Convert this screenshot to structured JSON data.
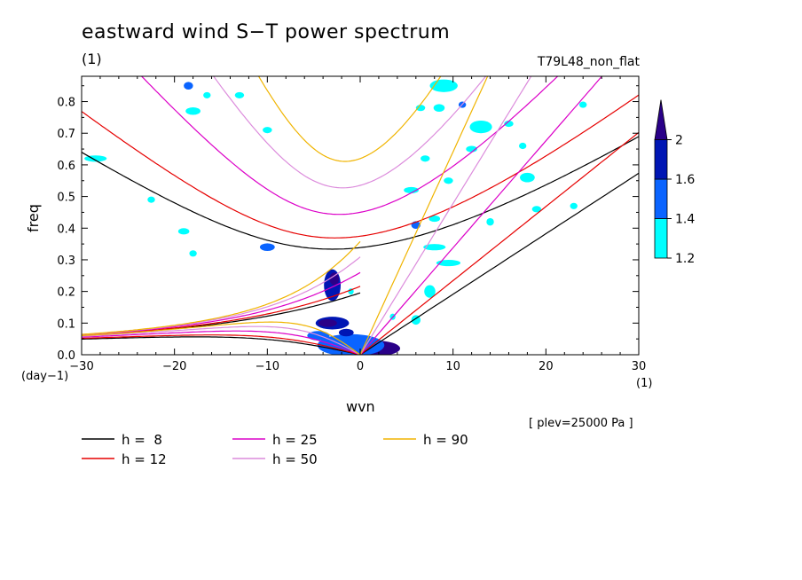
{
  "chart_data": {
    "type": "heatmap",
    "title": "eastward wind S−T power spectrum",
    "subtitle": "(1)",
    "experiment": "T79L48_non_flat",
    "xlabel": "wvn",
    "ylabel": "freq",
    "x_unit": "(1)",
    "y_unit": "(day−1)",
    "level_note": "[ plev=25000 Pa ]",
    "xlim": [
      -30,
      30
    ],
    "ylim": [
      0,
      0.88
    ],
    "x_ticks": [
      -30,
      -20,
      -10,
      0,
      10,
      20,
      30
    ],
    "x_tick_labels": [
      "−30",
      "−20",
      "−10",
      "0",
      "10",
      "20",
      "30"
    ],
    "y_ticks": [
      0,
      0.1,
      0.2,
      0.3,
      0.4,
      0.5,
      0.6,
      0.7,
      0.8
    ],
    "y_tick_labels": [
      "0.0",
      "0.1",
      "0.2",
      "0.3",
      "0.4",
      "0.5",
      "0.6",
      "0.7",
      "0.8"
    ],
    "colorbar": {
      "levels": [
        1.2,
        1.4,
        1.6,
        2
      ],
      "level_labels": [
        "1.2",
        "1.4",
        "1.6",
        "2"
      ],
      "colors": [
        "#00ffff",
        "#0a64ff",
        "#0016b4",
        "#2a0088"
      ]
    },
    "dispersion_curves": [
      {
        "name": "h =  8",
        "h": 8,
        "color": "#000000"
      },
      {
        "name": "h = 12",
        "h": 12,
        "color": "#e60000"
      },
      {
        "name": "h = 25",
        "h": 25,
        "color": "#dc00c8"
      },
      {
        "name": "h = 50",
        "h": 50,
        "color": "#dc8cdc"
      },
      {
        "name": "h = 90",
        "h": 90,
        "color": "#f0b400"
      }
    ],
    "power_regions": [
      {
        "k": 1.5,
        "f": 0.02,
        "rk": 2.8,
        "rf": 0.025,
        "level": 3
      },
      {
        "k": -1.0,
        "f": 0.03,
        "rk": 3.6,
        "rf": 0.035,
        "level": 1
      },
      {
        "k": -3.0,
        "f": 0.1,
        "rk": 1.8,
        "rf": 0.02,
        "level": 2
      },
      {
        "k": -3.5,
        "f": 0.1,
        "rk": 1.0,
        "rf": 0.012,
        "level": 3
      },
      {
        "k": -3.0,
        "f": 0.22,
        "rk": 0.9,
        "rf": 0.05,
        "level": 2
      },
      {
        "k": -2.8,
        "f": 0.24,
        "rk": 0.5,
        "rf": 0.02,
        "level": 3
      },
      {
        "k": -4.5,
        "f": 0.06,
        "rk": 1.2,
        "rf": 0.015,
        "level": 1
      },
      {
        "k": -1.5,
        "f": 0.07,
        "rk": 0.8,
        "rf": 0.012,
        "level": 2
      },
      {
        "k": 6.0,
        "f": 0.11,
        "rk": 0.5,
        "rf": 0.015,
        "level": 0
      },
      {
        "k": 6.0,
        "f": 0.41,
        "rk": 0.5,
        "rf": 0.012,
        "level": 1
      },
      {
        "k": 8.0,
        "f": 0.43,
        "rk": 0.6,
        "rf": 0.01,
        "level": 0
      },
      {
        "k": 7.5,
        "f": 0.2,
        "rk": 0.6,
        "rf": 0.02,
        "level": 0
      },
      {
        "k": 8.0,
        "f": 0.34,
        "rk": 1.2,
        "rf": 0.01,
        "level": 0
      },
      {
        "k": 9.5,
        "f": 0.29,
        "rk": 1.3,
        "rf": 0.01,
        "level": 0
      },
      {
        "k": 13.0,
        "f": 0.72,
        "rk": 1.2,
        "rf": 0.02,
        "level": 0
      },
      {
        "k": 12.0,
        "f": 0.65,
        "rk": 0.6,
        "rf": 0.01,
        "level": 0
      },
      {
        "k": 8.5,
        "f": 0.78,
        "rk": 0.6,
        "rf": 0.012,
        "level": 0
      },
      {
        "k": 9.0,
        "f": 0.85,
        "rk": 1.5,
        "rf": 0.02,
        "level": 0
      },
      {
        "k": 6.5,
        "f": 0.78,
        "rk": 0.5,
        "rf": 0.01,
        "level": 0
      },
      {
        "k": 11.0,
        "f": 0.79,
        "rk": 0.4,
        "rf": 0.01,
        "level": 1
      },
      {
        "k": 18.0,
        "f": 0.56,
        "rk": 0.8,
        "rf": 0.015,
        "level": 0
      },
      {
        "k": 19.0,
        "f": 0.46,
        "rk": 0.5,
        "rf": 0.01,
        "level": 0
      },
      {
        "k": 14.0,
        "f": 0.42,
        "rk": 0.4,
        "rf": 0.012,
        "level": 0
      },
      {
        "k": 5.5,
        "f": 0.52,
        "rk": 0.8,
        "rf": 0.01,
        "level": 0
      },
      {
        "k": 9.5,
        "f": 0.55,
        "rk": 0.5,
        "rf": 0.01,
        "level": 0
      },
      {
        "k": 7.0,
        "f": 0.62,
        "rk": 0.5,
        "rf": 0.01,
        "level": 0
      },
      {
        "k": -18.5,
        "f": 0.85,
        "rk": 0.5,
        "rf": 0.012,
        "level": 1
      },
      {
        "k": -18.0,
        "f": 0.77,
        "rk": 0.8,
        "rf": 0.012,
        "level": 0
      },
      {
        "k": -16.5,
        "f": 0.82,
        "rk": 0.4,
        "rf": 0.01,
        "level": 0
      },
      {
        "k": -13.0,
        "f": 0.82,
        "rk": 0.5,
        "rf": 0.01,
        "level": 0
      },
      {
        "k": -10.0,
        "f": 0.71,
        "rk": 0.5,
        "rf": 0.01,
        "level": 0
      },
      {
        "k": -28.5,
        "f": 0.62,
        "rk": 1.2,
        "rf": 0.01,
        "level": 0
      },
      {
        "k": -19.0,
        "f": 0.39,
        "rk": 0.6,
        "rf": 0.01,
        "level": 0
      },
      {
        "k": -10.0,
        "f": 0.34,
        "rk": 0.8,
        "rf": 0.012,
        "level": 1
      },
      {
        "k": -18.0,
        "f": 0.32,
        "rk": 0.4,
        "rf": 0.01,
        "level": 0
      },
      {
        "k": 17.5,
        "f": 0.66,
        "rk": 0.4,
        "rf": 0.01,
        "level": 0
      },
      {
        "k": 24.0,
        "f": 0.79,
        "rk": 0.4,
        "rf": 0.01,
        "level": 0
      },
      {
        "k": 23.0,
        "f": 0.47,
        "rk": 0.4,
        "rf": 0.01,
        "level": 0
      },
      {
        "k": 3.5,
        "f": 0.12,
        "rk": 0.3,
        "rf": 0.01,
        "level": 0
      },
      {
        "k": -1.0,
        "f": 0.2,
        "rk": 0.3,
        "rf": 0.01,
        "level": 0
      },
      {
        "k": -22.5,
        "f": 0.49,
        "rk": 0.4,
        "rf": 0.01,
        "level": 0
      },
      {
        "k": 16.0,
        "f": 0.73,
        "rk": 0.5,
        "rf": 0.01,
        "level": 0
      }
    ]
  }
}
